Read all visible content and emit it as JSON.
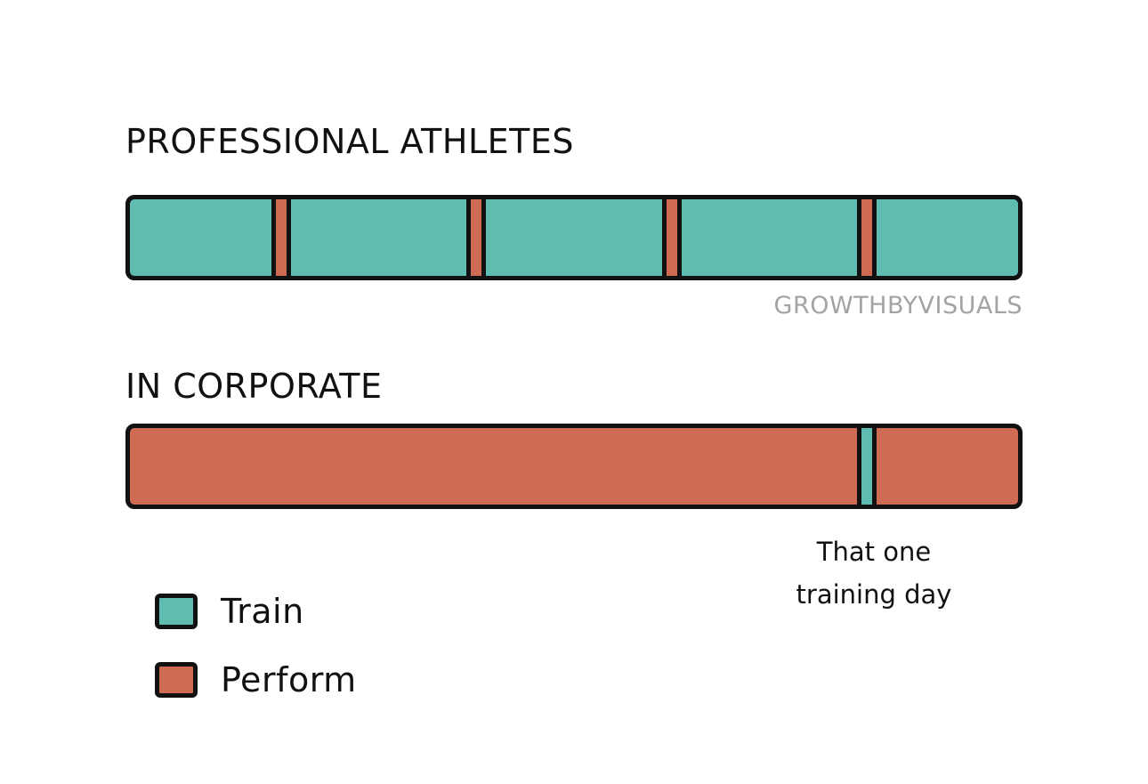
{
  "colors": {
    "train": "#5fbcb1",
    "perform": "#cf6a53",
    "outline": "#111111",
    "watermark": "#a3a3a3"
  },
  "diagram": {
    "heading_athletes": "PROFESSIONAL ATHLETES",
    "heading_corporate": "IN CORPORATE",
    "watermark": "GROWTHBYVISUALS",
    "annotation_line1": "That one",
    "annotation_line2": "training day",
    "athletes_bar": {
      "base": "train",
      "stripes": [
        {
          "type": "perform",
          "position": 0.17
        },
        {
          "type": "perform",
          "position": 0.39
        },
        {
          "type": "perform",
          "position": 0.61
        },
        {
          "type": "perform",
          "position": 0.83
        }
      ]
    },
    "corporate_bar": {
      "base": "perform",
      "stripes": [
        {
          "type": "train",
          "position": 0.83
        }
      ]
    }
  },
  "legend": {
    "items": [
      {
        "label": "Train",
        "color_key": "train"
      },
      {
        "label": "Perform",
        "color_key": "perform"
      }
    ]
  }
}
